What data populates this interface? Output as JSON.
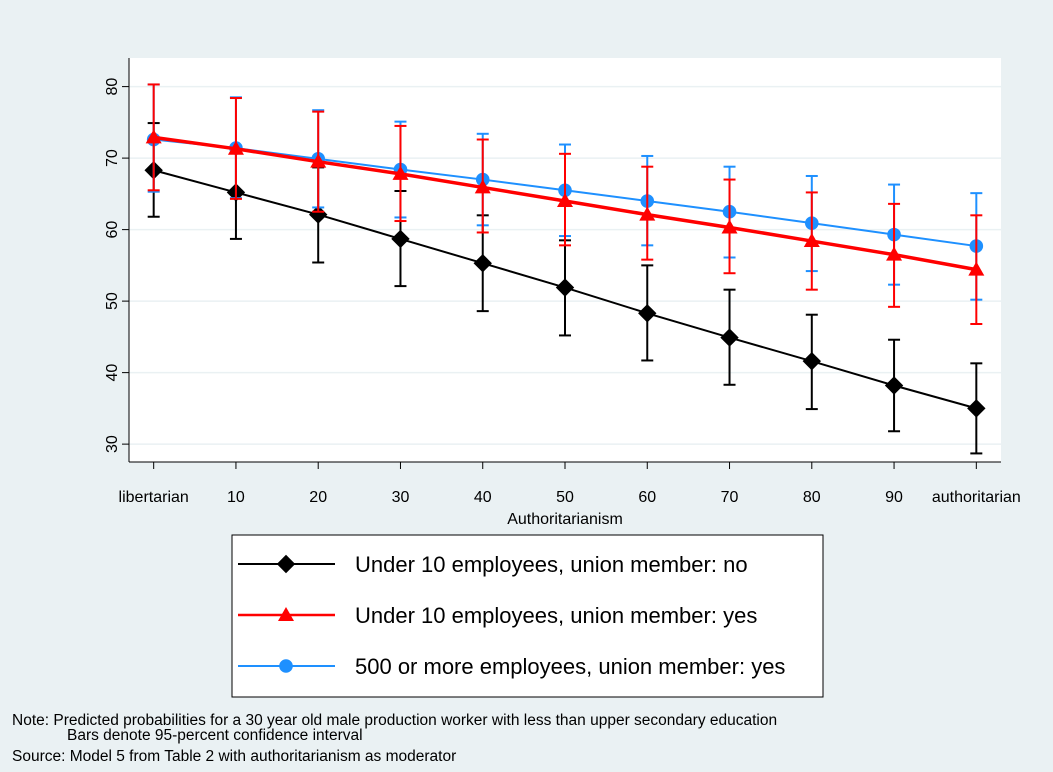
{
  "chart_data": {
    "type": "line",
    "xlabel": "Authoritarianism",
    "ylabel": "",
    "x": [
      0,
      10,
      20,
      30,
      40,
      50,
      60,
      70,
      80,
      90,
      100
    ],
    "xtick_labels": [
      "libertarian",
      "10",
      "20",
      "30",
      "40",
      "50",
      "60",
      "70",
      "80",
      "90",
      "authoritarian"
    ],
    "yticks": [
      30,
      40,
      50,
      60,
      70,
      80
    ],
    "ylim": [
      27.5,
      84
    ],
    "xlim": [
      -3,
      103
    ],
    "grid": true,
    "legend_position": "bottom",
    "series": [
      {
        "name": "Under 10 employees, union member: no",
        "color": "#000000",
        "marker": "diamond",
        "values": [
          68.3,
          65.2,
          62.1,
          58.7,
          55.3,
          51.9,
          48.3,
          44.9,
          41.6,
          38.2,
          35.0
        ],
        "lower": [
          61.8,
          58.7,
          55.4,
          52.1,
          48.6,
          45.2,
          41.7,
          38.3,
          34.9,
          31.8,
          28.7
        ],
        "upper": [
          74.9,
          71.5,
          68.7,
          65.4,
          62.0,
          58.5,
          55.0,
          51.6,
          48.1,
          44.6,
          41.3
        ]
      },
      {
        "name": "Under 10 employees, union member: yes",
        "color": "#ff0000",
        "marker": "triangle",
        "values": [
          72.9,
          71.3,
          69.5,
          67.8,
          65.9,
          64.0,
          62.1,
          60.3,
          58.4,
          56.5,
          54.4
        ],
        "lower": [
          65.5,
          64.3,
          62.5,
          61.2,
          59.6,
          57.8,
          55.8,
          53.9,
          51.6,
          49.2,
          46.8
        ],
        "upper": [
          80.3,
          78.4,
          76.5,
          74.5,
          72.6,
          70.6,
          68.8,
          67.0,
          65.2,
          63.6,
          62.0
        ]
      },
      {
        "name": "500 or more employees, union member: yes",
        "color": "#1e90ff",
        "marker": "circle",
        "values": [
          72.6,
          71.4,
          69.9,
          68.4,
          67.0,
          65.5,
          64.0,
          62.5,
          60.9,
          59.3,
          57.7
        ],
        "lower": [
          65.3,
          64.4,
          63.1,
          61.7,
          60.6,
          59.1,
          57.8,
          56.1,
          54.2,
          52.3,
          50.2
        ],
        "upper": [
          80.3,
          78.5,
          76.7,
          75.1,
          73.4,
          71.9,
          70.3,
          68.8,
          67.5,
          66.3,
          65.1
        ]
      }
    ]
  },
  "notes": {
    "line1": "Note: Predicted probabilities for a 30 year old male production worker with less than upper secondary education",
    "line2": "Bars denote 95-percent confidence interval",
    "line3": "Source: Model 5 from Table 2 with authoritarianism as moderator"
  }
}
